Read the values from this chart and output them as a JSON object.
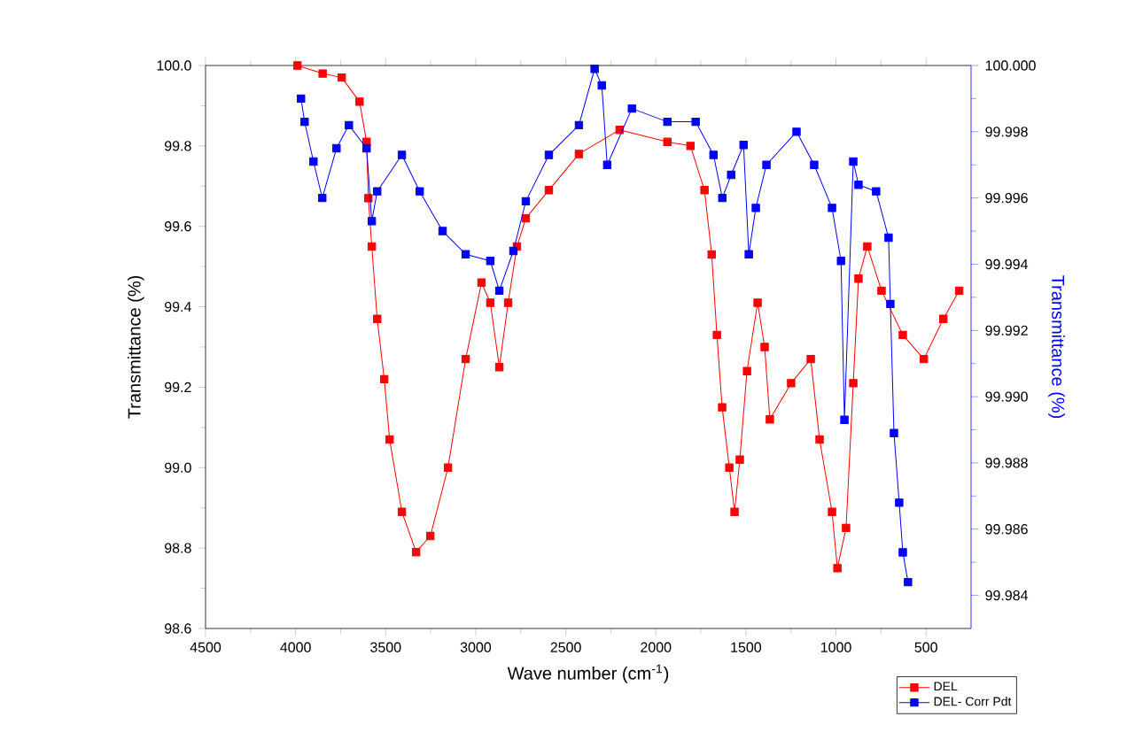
{
  "chart_data": {
    "type": "line",
    "xlabel": "Wave number (cm$^{-1}$)",
    "ylabel": "Transmittance (%)",
    "y2label": "Transmittance (%)",
    "xlim": [
      4500,
      250
    ],
    "xticks": [
      4500,
      4000,
      3500,
      3000,
      2500,
      2000,
      1500,
      1000,
      500
    ],
    "ylim": [
      98.6,
      100.0
    ],
    "yticks": [
      {
        "value": 98.6,
        "label": "98.6"
      },
      {
        "value": 98.8,
        "label": "98.8"
      },
      {
        "value": 99.0,
        "label": "99.0"
      },
      {
        "value": 99.2,
        "label": "99.2"
      },
      {
        "value": 99.4,
        "label": "99.4"
      },
      {
        "value": 99.6,
        "label": "99.6"
      },
      {
        "value": 99.8,
        "label": "99.8"
      },
      {
        "value": 100.0,
        "label": "100.0"
      }
    ],
    "y2lim": [
      99.983,
      100.0
    ],
    "y2ticks": [
      {
        "value": 99.984,
        "label": "99.984"
      },
      {
        "value": 99.986,
        "label": "99.986"
      },
      {
        "value": 99.988,
        "label": "99.988"
      },
      {
        "value": 99.99,
        "label": "99.990"
      },
      {
        "value": 99.992,
        "label": "99.992"
      },
      {
        "value": 99.994,
        "label": "99.994"
      },
      {
        "value": 99.996,
        "label": "99.996"
      },
      {
        "value": 99.998,
        "label": "99.998"
      },
      {
        "value": 100.0,
        "label": "100.000"
      }
    ],
    "marker": "square",
    "line_style": "solid",
    "legend": "bottom right",
    "series": [
      {
        "name": "DEL",
        "color": "#ff0000",
        "x": [
          3990,
          3850,
          3744,
          3645,
          3606,
          3596,
          3577,
          3547,
          3508,
          3478,
          3410,
          3331,
          3252,
          3154,
          3056,
          2968,
          2919,
          2869,
          2820,
          2771,
          2722,
          2594,
          2427,
          2201,
          1936,
          1808,
          1730,
          1690,
          1661,
          1632,
          1592,
          1563,
          1534,
          1494,
          1435,
          1396,
          1367,
          1249,
          1140,
          1091,
          1022,
          992,
          944,
          904,
          875,
          826,
          747,
          629,
          512,
          404,
          316
        ],
        "values": [
          100.0,
          99.98,
          99.97,
          99.91,
          99.81,
          99.67,
          99.55,
          99.37,
          99.22,
          99.07,
          98.89,
          98.79,
          98.83,
          99.0,
          99.27,
          99.46,
          99.41,
          99.25,
          99.41,
          99.55,
          99.62,
          99.69,
          99.78,
          99.84,
          99.81,
          99.8,
          99.69,
          99.53,
          99.33,
          99.15,
          99.0,
          98.89,
          99.02,
          99.24,
          99.41,
          99.3,
          99.12,
          99.21,
          99.27,
          99.07,
          98.89,
          98.75,
          98.85,
          99.21,
          99.47,
          99.55,
          99.44,
          99.33,
          99.27,
          99.37,
          99.44
        ]
      },
      {
        "name": "DEL- Corr Pdt",
        "color": "#0000ff",
        "axis": "y2",
        "x": [
          3970,
          3950,
          3901,
          3852,
          3773,
          3704,
          3606,
          3577,
          3547,
          3410,
          3311,
          3184,
          3056,
          2919,
          2869,
          2791,
          2722,
          2594,
          2427,
          2340,
          2300,
          2270,
          2133,
          1936,
          1779,
          1680,
          1631,
          1582,
          1513,
          1484,
          1445,
          1386,
          1219,
          1121,
          1022,
          972,
          953,
          904,
          875,
          777,
          708,
          698,
          678,
          649,
          629,
          600
        ],
        "values": [
          99.999,
          99.9983,
          99.9971,
          99.996,
          99.9975,
          99.9982,
          99.9975,
          99.9953,
          99.9962,
          99.9973,
          99.9962,
          99.995,
          99.9943,
          99.9941,
          99.9932,
          99.9944,
          99.9959,
          99.9973,
          99.9982,
          99.9999,
          99.9994,
          99.997,
          99.9987,
          99.9983,
          99.9983,
          99.9973,
          99.996,
          99.9967,
          99.9976,
          99.9943,
          99.9957,
          99.997,
          99.998,
          99.997,
          99.9957,
          99.9941,
          99.9893,
          99.9971,
          99.9964,
          99.9962,
          99.9948,
          99.9928,
          99.9889,
          99.9868,
          99.9853,
          99.9844
        ]
      }
    ]
  }
}
